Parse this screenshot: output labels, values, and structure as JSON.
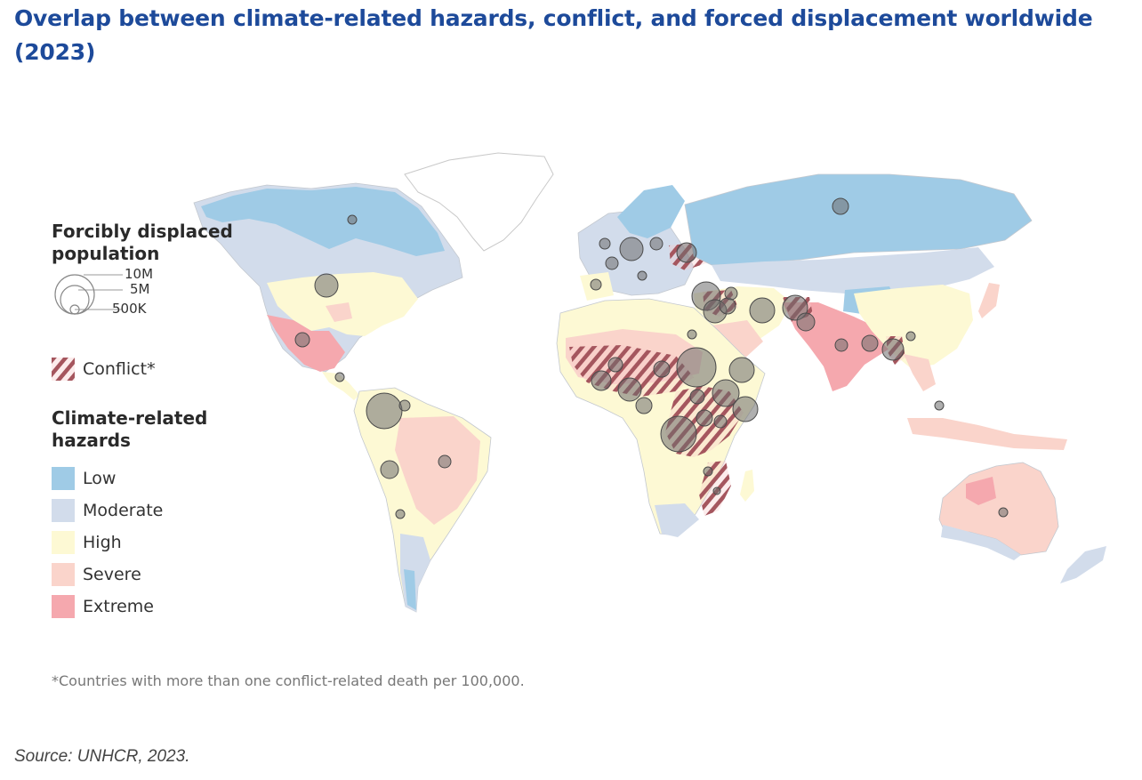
{
  "title": "Overlap between climate-related hazards, conflict, and forced displacement worldwide (2023)",
  "legend": {
    "population_title": "Forcibly displaced population",
    "population_scale": [
      "10M",
      "5M",
      "500K"
    ],
    "conflict_label": "Conflict*",
    "hazards_title": "Climate-related hazards",
    "hazards": [
      {
        "label": "Low",
        "color": "#9fcbe6"
      },
      {
        "label": "Moderate",
        "color": "#d2dceb"
      },
      {
        "label": "High",
        "color": "#fdf9d4"
      },
      {
        "label": "Severe",
        "color": "#fad4cb"
      },
      {
        "label": "Extreme",
        "color": "#f5a8ae"
      }
    ]
  },
  "colors": {
    "title": "#1d4a9a",
    "land_default": "#fdf9d4",
    "bubble": "#6e6e6e",
    "conflict_hatch": "#a5565e"
  },
  "footnote": "*Countries with more than one conflict-related death per 100,000.",
  "source": "Source: UNHCR, 2023."
}
